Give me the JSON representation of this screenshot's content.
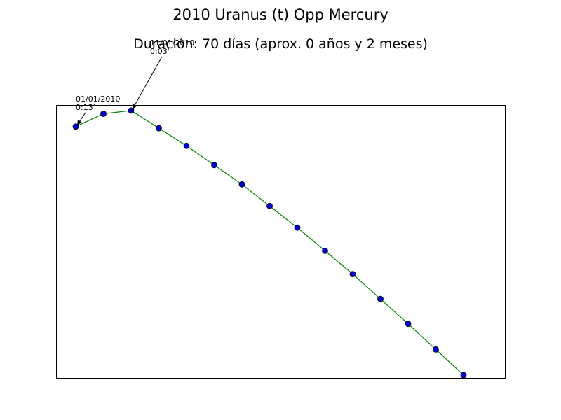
{
  "chart_data": {
    "type": "line",
    "title": "2010 Uranus (t) Opp Mercury",
    "subtitle": "Duración: 70 días (aprox. 0 años y 2 meses)",
    "xlabel": "",
    "ylabel": "",
    "x_unit": "days",
    "x": [
      0,
      5,
      10,
      15,
      20,
      25,
      30,
      35,
      40,
      45,
      50,
      55,
      60,
      65,
      70
    ],
    "y": [
      0.2167,
      0.0833,
      0.05,
      0.2333,
      0.4167,
      0.6167,
      0.8167,
      1.0417,
      1.2667,
      1.5083,
      1.75,
      2.0083,
      2.2667,
      2.5333,
      2.8
    ],
    "ylim": [
      0,
      2.8
    ],
    "y_inverted": true,
    "grid": false,
    "line_color": "#008000",
    "marker_color": "#0000cc",
    "annotations": [
      {
        "date": "01/01/2010",
        "value": "0:13'",
        "point_index": 0
      },
      {
        "date": "11/01/2010",
        "value": "0:03'",
        "point_index": 2
      }
    ]
  }
}
